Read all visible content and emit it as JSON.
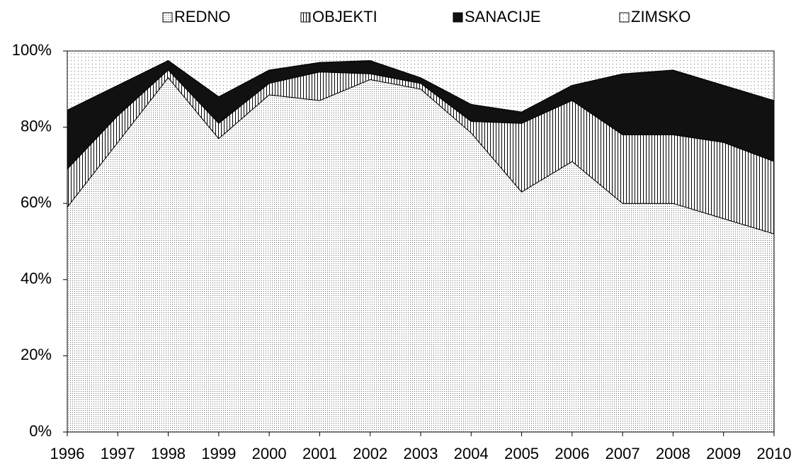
{
  "chart_data": {
    "type": "stacked_area_percent",
    "categories": [
      "1996",
      "1997",
      "1998",
      "1999",
      "2000",
      "2001",
      "2002",
      "2003",
      "2004",
      "2005",
      "2006",
      "2007",
      "2008",
      "2009",
      "2010"
    ],
    "series": [
      {
        "name": "REDNO",
        "color": "#606060",
        "pattern": "dense-dots",
        "values": [
          59,
          76,
          93,
          77,
          88.5,
          87,
          92.5,
          90,
          78.5,
          63,
          71,
          60,
          60,
          56,
          52
        ]
      },
      {
        "name": "OBJEKTI",
        "color": "#000000",
        "pattern": "vertical-lines",
        "values": [
          10,
          7,
          2,
          4,
          3,
          7.5,
          1.5,
          1.5,
          3,
          18,
          16,
          18,
          18,
          20,
          19
        ]
      },
      {
        "name": "SANACIJE",
        "color": "#111111",
        "pattern": "solid",
        "values": [
          15.5,
          8,
          2.5,
          7,
          3.5,
          2.5,
          3.5,
          1.5,
          4.5,
          3,
          4,
          16,
          17,
          15,
          16
        ]
      },
      {
        "name": "ZIMSKO",
        "color": "#707070",
        "pattern": "sparse-dots",
        "values": [
          15.5,
          9,
          2.5,
          12,
          5,
          3,
          2.5,
          7,
          14,
          16,
          9,
          6,
          5,
          9,
          13
        ]
      }
    ],
    "ylim": [
      0,
      100
    ],
    "yticks": [
      {
        "value": 0,
        "label": "0%"
      },
      {
        "value": 20,
        "label": "20%"
      },
      {
        "value": 40,
        "label": "40%"
      },
      {
        "value": 60,
        "label": "60%"
      },
      {
        "value": 80,
        "label": "80%"
      },
      {
        "value": 100,
        "label": "100%"
      }
    ],
    "legend": "top"
  }
}
